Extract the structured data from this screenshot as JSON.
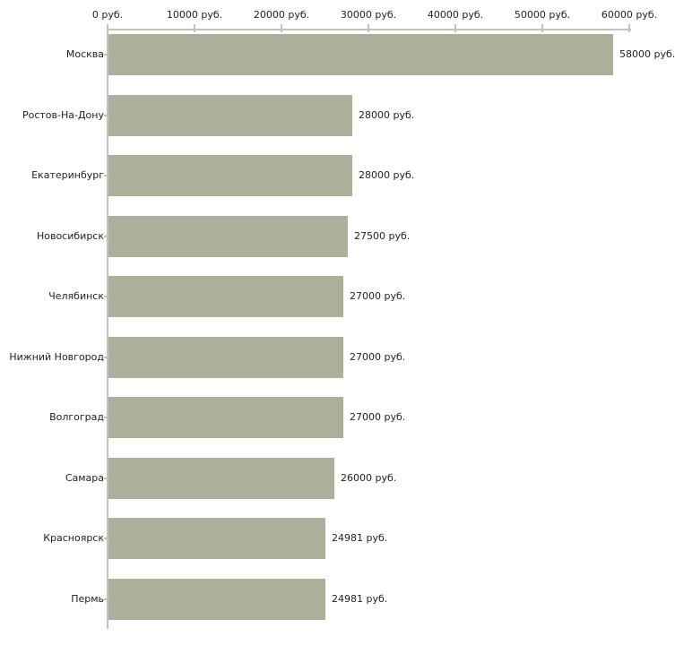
{
  "chart_data": {
    "type": "bar",
    "orientation": "horizontal",
    "title": "",
    "xlabel": "",
    "ylabel": "",
    "unit": "руб.",
    "grid": false,
    "legend": false,
    "categories": [
      "Москва",
      "Ростов-На-Дону",
      "Екатеринбург",
      "Новосибирск",
      "Челябинск",
      "Нижний Новгород",
      "Волгоград",
      "Самара",
      "Красноярск",
      "Пермь"
    ],
    "values": [
      58000,
      28000,
      28000,
      27500,
      27000,
      27000,
      27000,
      26000,
      24981,
      24981
    ],
    "value_labels": [
      "58000 руб.",
      "28000 руб.",
      "28000 руб.",
      "27500 руб.",
      "27000 руб.",
      "27000 руб.",
      "27000 руб.",
      "26000 руб.",
      "24981 руб.",
      "24981 руб."
    ],
    "x_axis": {
      "position": "top",
      "xlim": [
        0,
        60000
      ],
      "tick_values": [
        0,
        10000,
        20000,
        30000,
        40000,
        50000,
        60000
      ],
      "tick_labels": [
        "0 руб.",
        "10000 руб.",
        "20000 руб.",
        "30000 руб.",
        "40000 руб.",
        "50000 руб.",
        "60000 руб."
      ]
    },
    "colors": {
      "bar": "#abb09a",
      "axis_line": "#c2c2c2",
      "tick": "#c6c69e",
      "text": "#222222",
      "background": "#ffffff"
    }
  }
}
